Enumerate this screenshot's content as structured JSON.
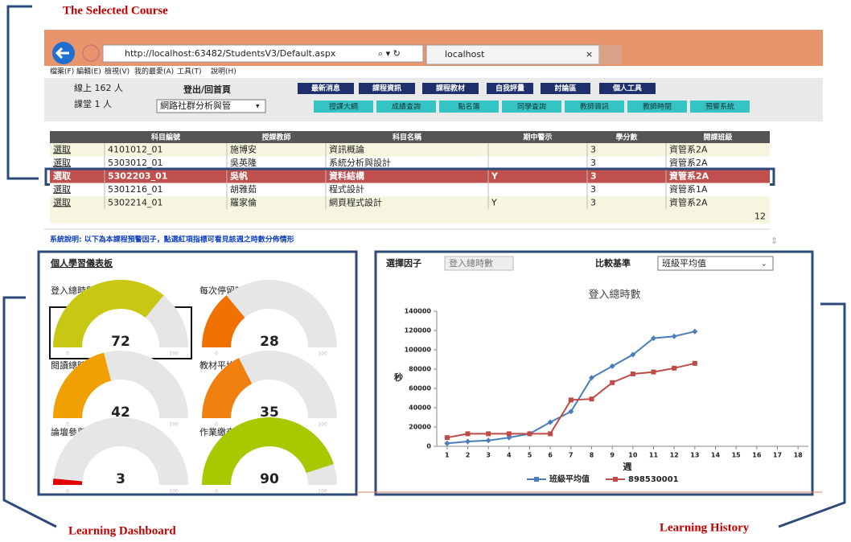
{
  "annotations": {
    "selected_course": "The Selected Course",
    "learning_dashboard": "Learning Dashboard",
    "learning_history": "Learning History"
  },
  "browser": {
    "url": "http://localhost:63482/StudentsV3/Default.aspx",
    "tab": "localhost",
    "menu": [
      "檔案(F)",
      "編輯(E)",
      "檢視(V)",
      "我的最愛(A)",
      "工具(T)",
      "說明(H)"
    ]
  },
  "header": {
    "online": "線上 162 人",
    "class": "課堂 1 人",
    "logout": "登出/回首頁",
    "course_select": "網路社群分析與管",
    "buttons": [
      "最新消息",
      "課程資訊",
      "課程教材",
      "自我評量",
      "討論區",
      "個人工具"
    ],
    "tabs": [
      "授課大綱",
      "成績查詢",
      "點名簿",
      "同學查詢",
      "教師資訊",
      "教師時間",
      "預警系統"
    ]
  },
  "table": {
    "columns": [
      null,
      "科目編號",
      "授課教師",
      "科目名稱",
      "期中警示",
      "學分數",
      "開課班級"
    ],
    "rows": [
      [
        "選取",
        "4101012_01",
        "施博安",
        "資訊概論",
        null,
        "3",
        "資管系2A"
      ],
      [
        "選取",
        "5303012_01",
        "吳英隆",
        "系統分析與設計",
        null,
        "3",
        "資管系2A"
      ],
      [
        "選取",
        "5302203_01",
        "吳帆",
        "資料結構",
        "Y",
        "3",
        "資管系2A"
      ],
      [
        "選取",
        "5301216_01",
        "胡雅茹",
        "程式設計",
        null,
        "3",
        "資管系1A"
      ],
      [
        "選取",
        "5302214_01",
        "羅家倫",
        "網頁程式設計",
        "Y",
        "3",
        "資管系2A"
      ]
    ],
    "selected_row": 2,
    "pager": "12"
  },
  "note": "系統說明: 以下為本課程預警因子，點選紅項指標可看見該週之時數分佈情形",
  "dashboard": {
    "title": "個人學習儀表板",
    "range": [
      0,
      100
    ],
    "gauges": [
      {
        "label": "登入總時數",
        "value": 72,
        "color": "#c8c814"
      },
      {
        "label": "每次停留時數",
        "value": 28,
        "color": "#f07000"
      },
      {
        "label": "閱讀總時數",
        "value": 42,
        "color": "#f0a000"
      },
      {
        "label": "教材平均閱讀時數",
        "value": 35,
        "color": "#f08010"
      },
      {
        "label": "論壇參與時數",
        "value": 3,
        "color": "#e00000"
      },
      {
        "label": "作業繳交比率",
        "value": 90,
        "color": "#a8c800"
      }
    ]
  },
  "history": {
    "factor_label": "選擇因子",
    "factor": "登入總時數",
    "baseline_label": "比較基準",
    "baseline": "班級平均值"
  },
  "chart_data": {
    "type": "line",
    "title": "登入總時數",
    "x_label": "週",
    "y_label": "秒",
    "x": [
      1,
      2,
      3,
      4,
      5,
      6,
      7,
      8,
      9,
      10,
      11,
      12,
      13
    ],
    "series": [
      {
        "name": "班級平均值",
        "color": "#4a7ebb",
        "values": [
          3000,
          5000,
          6000,
          9000,
          13000,
          25000,
          36000,
          71000,
          83000,
          95000,
          112000,
          114000,
          119000
        ]
      },
      {
        "name": "898530001",
        "color": "#be4b48",
        "values": [
          9000,
          13000,
          13000,
          13000,
          13000,
          13000,
          48000,
          49000,
          66000,
          75000,
          77000,
          81000,
          86000
        ]
      }
    ],
    "xlim": [
      0.5,
      18.5
    ],
    "xticks": [
      1,
      2,
      3,
      4,
      5,
      6,
      7,
      8,
      9,
      10,
      11,
      12,
      13,
      14,
      15,
      16,
      17,
      18
    ],
    "ylim": [
      0,
      140000
    ],
    "yticks": [
      0,
      20000,
      40000,
      60000,
      80000,
      100000,
      120000,
      140000
    ]
  }
}
